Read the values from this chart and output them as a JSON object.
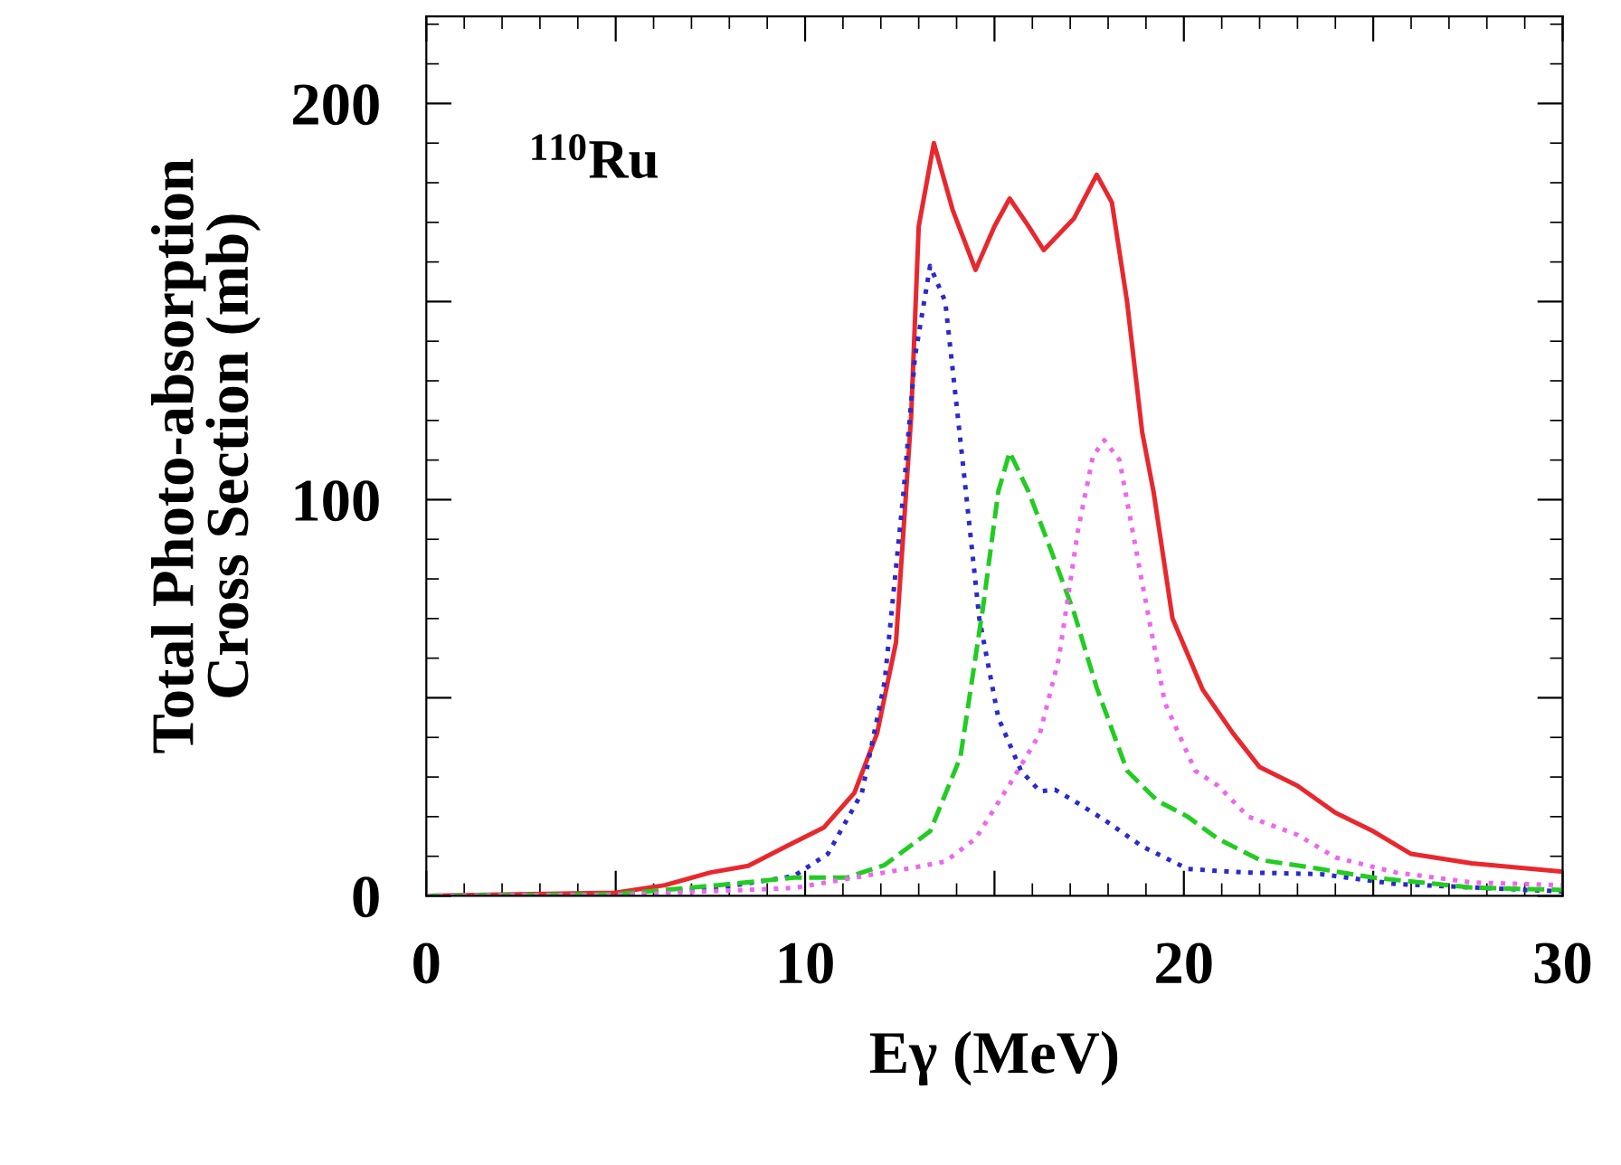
{
  "chart_data": {
    "type": "line",
    "xlabel": "Eγ (MeV)",
    "ylabel": "Total Photo-absorption\nCross Section (mb)",
    "annotations": [
      "$^{110}$Ru"
    ],
    "xlim": [
      0,
      30
    ],
    "ylim": [
      0,
      222
    ],
    "xticks": [
      0,
      {
        "value": 5,
        "label": null
      },
      10,
      {
        "value": 15,
        "label": null
      },
      20,
      {
        "value": 25,
        "label": null
      },
      30
    ],
    "yticks": [
      0,
      {
        "value": 50,
        "label": null
      },
      100,
      {
        "value": 150,
        "label": null
      },
      200
    ],
    "grid": false,
    "legend": false,
    "marker": "none",
    "series": [
      {
        "color": "#e8282e",
        "line_style": "solid",
        "x": [
          0,
          5,
          6.3,
          7.5,
          8.5,
          9.5,
          10.5,
          11.3,
          11.9,
          12.4,
          12.8,
          13.0,
          13.4,
          13.9,
          14.5,
          15.0,
          15.4,
          15.9,
          16.3,
          17.1,
          17.7,
          18.1,
          18.5,
          18.9,
          19.2,
          19.7,
          20.5,
          21.3,
          22.0,
          23.0,
          24.0,
          25.0,
          26.0,
          27.6,
          30
        ],
        "values": [
          0,
          0.8,
          2.7,
          5.9,
          7.6,
          12.5,
          17.3,
          26,
          41,
          64,
          121,
          169,
          190,
          173,
          158,
          169,
          176,
          169,
          163,
          171,
          182,
          175,
          150,
          117,
          102,
          70,
          52,
          41,
          32.5,
          27.8,
          21,
          16.3,
          10.6,
          8.2,
          6.1
        ]
      },
      {
        "color": "#2a2acd",
        "line_style": "dotted",
        "x": [
          0,
          5,
          7.7,
          9.7,
          10.6,
          11.5,
          12.1,
          12.6,
          12.9,
          13.3,
          13.7,
          14.1,
          14.6,
          15.1,
          15.7,
          16.2,
          16.6,
          17.1,
          17.9,
          18.9,
          20.1,
          21.6,
          23.6,
          25.6,
          30
        ],
        "values": [
          0,
          0.2,
          2,
          5,
          10.6,
          26,
          54,
          102,
          136,
          159,
          150,
          115,
          70,
          45,
          31.6,
          26.4,
          26.8,
          24,
          19.2,
          12.5,
          6.8,
          5.9,
          5.5,
          3,
          1.1
        ]
      },
      {
        "color": "#22cc22",
        "line_style": "dashed",
        "x": [
          0,
          5,
          7.7,
          9.7,
          11.1,
          12.1,
          13.3,
          14.1,
          14.7,
          15.1,
          15.4,
          15.9,
          16.5,
          17.1,
          17.7,
          18.5,
          19.3,
          20.1,
          20.9,
          22.0,
          23.6,
          25.0,
          27.6,
          30
        ],
        "values": [
          0,
          0.4,
          2.7,
          4.6,
          4.6,
          7.8,
          16.3,
          35,
          73,
          102,
          112,
          102,
          87,
          71.5,
          52.5,
          31.6,
          24,
          20,
          14.4,
          9.1,
          6.8,
          4.6,
          2.1,
          1.5
        ]
      },
      {
        "color": "#ee66ee",
        "line_style": "dotted",
        "x": [
          0,
          5,
          9.7,
          12.1,
          12.9,
          13.7,
          14.5,
          15.5,
          16.2,
          16.7,
          17.2,
          17.6,
          17.9,
          18.3,
          18.9,
          19.5,
          20.3,
          20.9,
          21.7,
          23.0,
          24.0,
          25.6,
          27.6,
          30
        ],
        "values": [
          0,
          0.2,
          2,
          5.9,
          7.2,
          8.7,
          14.4,
          29.7,
          41,
          60,
          92,
          111,
          115,
          110,
          79,
          48.7,
          31.6,
          27.8,
          20,
          15.4,
          9.7,
          5.9,
          3.4,
          2.7
        ]
      }
    ]
  }
}
